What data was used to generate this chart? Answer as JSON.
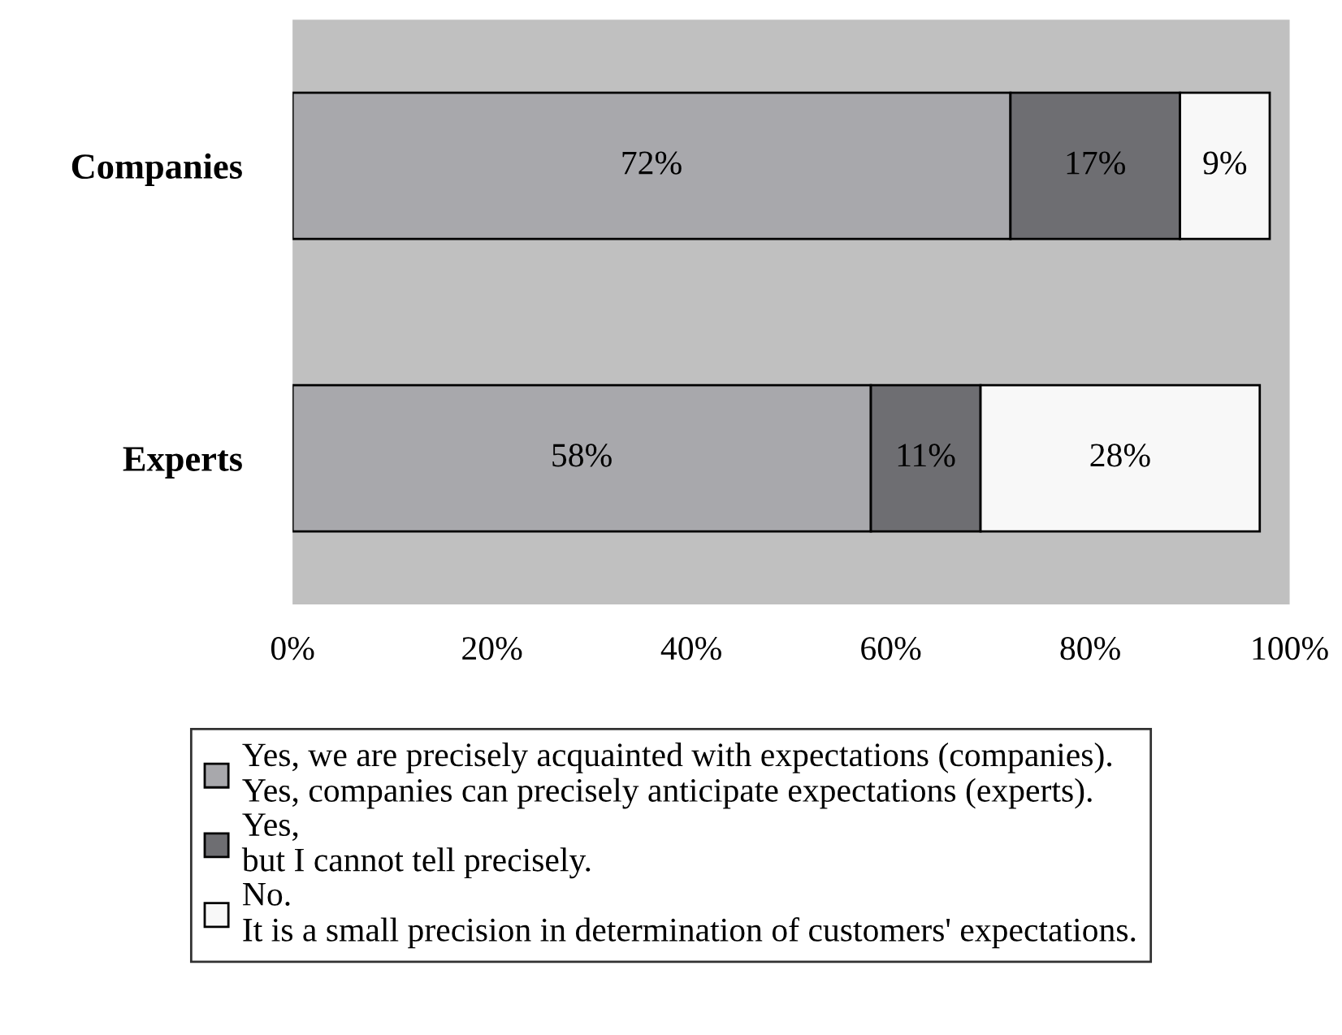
{
  "chart_data": {
    "type": "bar",
    "orientation": "horizontal",
    "stacked": true,
    "categories": [
      "Companies",
      "Experts"
    ],
    "series": [
      {
        "name": "Yes, we are precisely acquainted with expectations (companies).\nYes, companies can precisely anticipate expectations (experts).",
        "color": "#a8a8ac",
        "values": [
          72,
          58
        ],
        "value_labels": [
          "72%",
          "58%"
        ]
      },
      {
        "name": "Yes,\nbut I cannot tell precisely.",
        "color": "#6e6e72",
        "values": [
          17,
          11
        ],
        "value_labels": [
          "17%",
          "11%"
        ]
      },
      {
        "name": "No.\nIt is a small precision in determination of customers' expectations.",
        "color": "#f8f8f8",
        "values": [
          9,
          28
        ],
        "value_labels": [
          "9%",
          "28%"
        ]
      }
    ],
    "xlim": [
      0,
      100
    ],
    "xticks": [
      {
        "value": 0,
        "label": "0%"
      },
      {
        "value": 20,
        "label": "20%"
      },
      {
        "value": 40,
        "label": "40%"
      },
      {
        "value": 60,
        "label": "60%"
      },
      {
        "value": 80,
        "label": "80%"
      },
      {
        "value": 100,
        "label": "100%"
      }
    ],
    "grid": false,
    "legend": "bottom"
  }
}
